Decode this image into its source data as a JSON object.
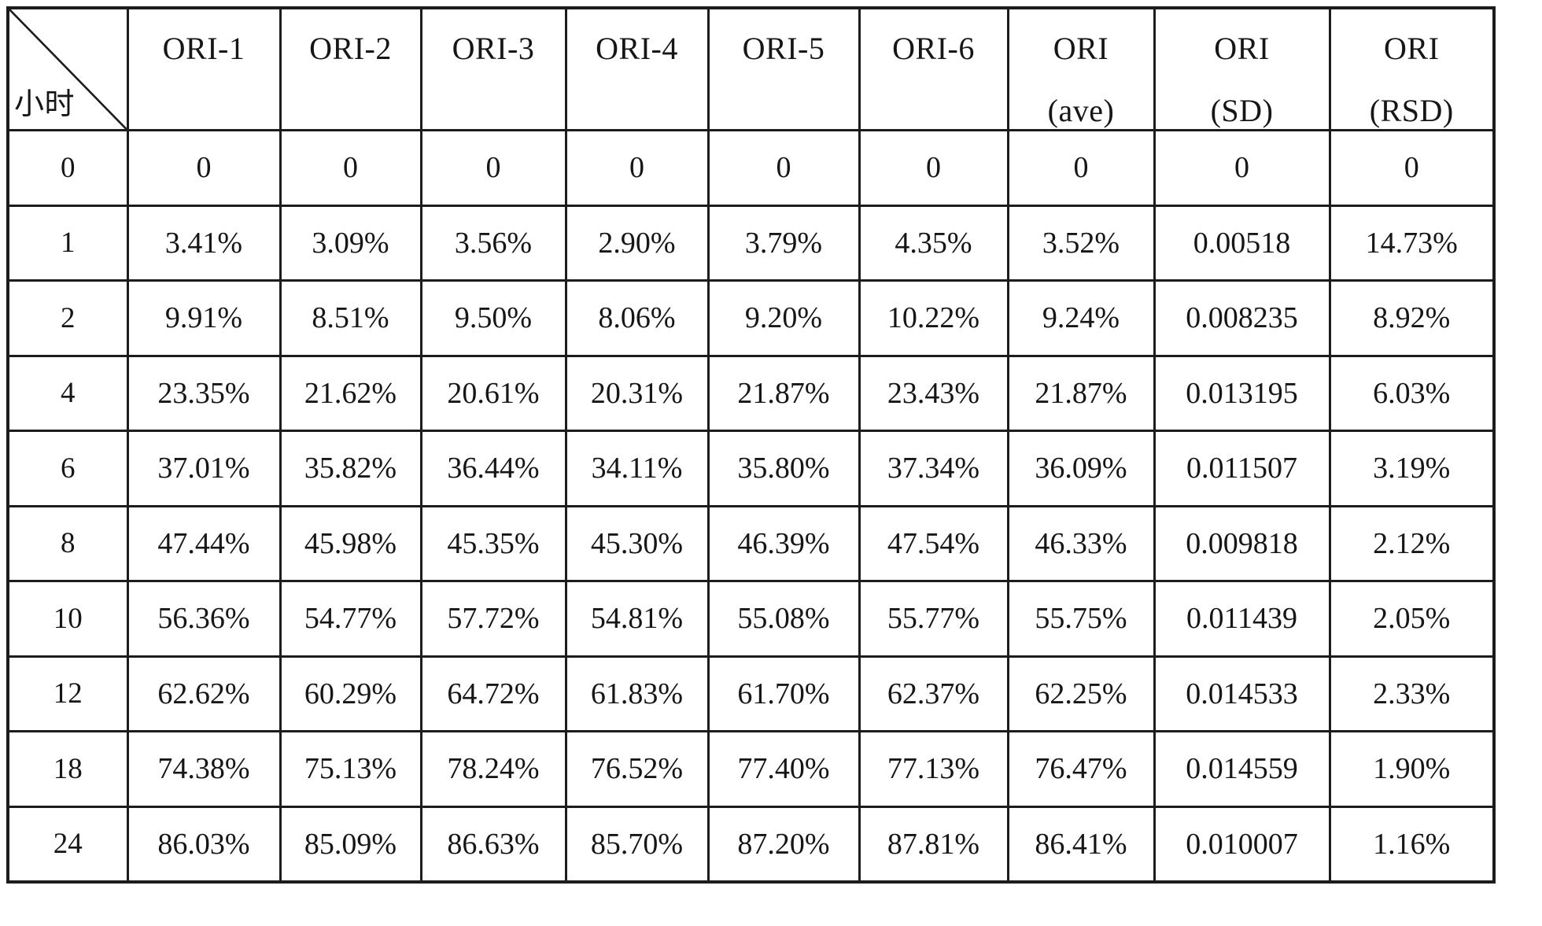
{
  "table": {
    "corner_label": "小时",
    "ink_color": "#1c1c1c",
    "columns": [
      {
        "id": "ori-1",
        "lines": [
          "ORI-1"
        ]
      },
      {
        "id": "ori-2",
        "lines": [
          "ORI-2"
        ]
      },
      {
        "id": "ori-3",
        "lines": [
          "ORI-3"
        ]
      },
      {
        "id": "ori-4",
        "lines": [
          "ORI-4"
        ]
      },
      {
        "id": "ori-5",
        "lines": [
          "ORI-5"
        ]
      },
      {
        "id": "ori-6",
        "lines": [
          "ORI-6"
        ]
      },
      {
        "id": "ori-ave",
        "lines": [
          "ORI",
          "(ave)"
        ]
      },
      {
        "id": "ori-sd",
        "lines": [
          "ORI",
          "(SD)"
        ]
      },
      {
        "id": "ori-rsd",
        "lines": [
          "ORI",
          "(RSD)"
        ]
      }
    ],
    "rows": [
      {
        "hour": "0",
        "values": [
          "0",
          "0",
          "0",
          "0",
          "0",
          "0",
          "0",
          "0",
          "0"
        ]
      },
      {
        "hour": "1",
        "values": [
          "3.41%",
          "3.09%",
          "3.56%",
          "2.90%",
          "3.79%",
          "4.35%",
          "3.52%",
          "0.00518",
          "14.73%"
        ]
      },
      {
        "hour": "2",
        "values": [
          "9.91%",
          "8.51%",
          "9.50%",
          "8.06%",
          "9.20%",
          "10.22%",
          "9.24%",
          "0.008235",
          "8.92%"
        ]
      },
      {
        "hour": "4",
        "values": [
          "23.35%",
          "21.62%",
          "20.61%",
          "20.31%",
          "21.87%",
          "23.43%",
          "21.87%",
          "0.013195",
          "6.03%"
        ]
      },
      {
        "hour": "6",
        "values": [
          "37.01%",
          "35.82%",
          "36.44%",
          "34.11%",
          "35.80%",
          "37.34%",
          "36.09%",
          "0.011507",
          "3.19%"
        ]
      },
      {
        "hour": "8",
        "values": [
          "47.44%",
          "45.98%",
          "45.35%",
          "45.30%",
          "46.39%",
          "47.54%",
          "46.33%",
          "0.009818",
          "2.12%"
        ]
      },
      {
        "hour": "10",
        "values": [
          "56.36%",
          "54.77%",
          "57.72%",
          "54.81%",
          "55.08%",
          "55.77%",
          "55.75%",
          "0.011439",
          "2.05%"
        ]
      },
      {
        "hour": "12",
        "values": [
          "62.62%",
          "60.29%",
          "64.72%",
          "61.83%",
          "61.70%",
          "62.37%",
          "62.25%",
          "0.014533",
          "2.33%"
        ]
      },
      {
        "hour": "18",
        "values": [
          "74.38%",
          "75.13%",
          "78.24%",
          "76.52%",
          "77.40%",
          "77.13%",
          "76.47%",
          "0.014559",
          "1.90%"
        ]
      },
      {
        "hour": "24",
        "values": [
          "86.03%",
          "85.09%",
          "86.63%",
          "85.70%",
          "87.20%",
          "87.81%",
          "86.41%",
          "0.010007",
          "1.16%"
        ]
      }
    ]
  }
}
